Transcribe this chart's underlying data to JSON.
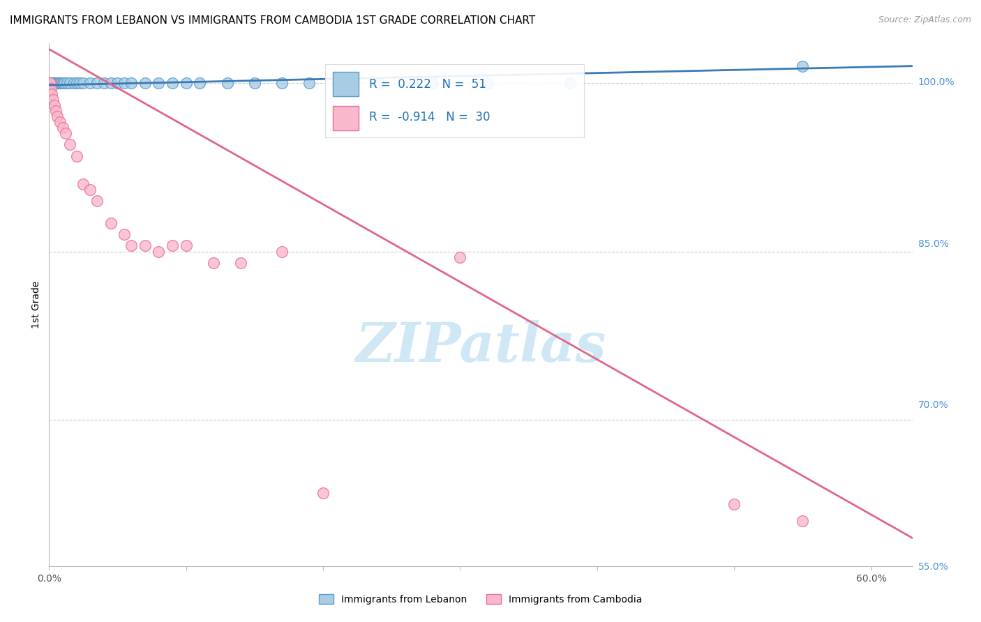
{
  "title": "IMMIGRANTS FROM LEBANON VS IMMIGRANTS FROM CAMBODIA 1ST GRADE CORRELATION CHART",
  "source": "Source: ZipAtlas.com",
  "ylabel": "1st Grade",
  "x_tick_positions": [
    0,
    10,
    20,
    30,
    40,
    50,
    60
  ],
  "x_tick_labels": [
    "0.0%",
    "",
    "",
    "",
    "",
    "",
    "60.0%"
  ],
  "right_ytick_vals": [
    100.0,
    85.0,
    70.0,
    55.0
  ],
  "right_ytick_labels": [
    "100.0%",
    "85.0%",
    "70.0%",
    "55.0%"
  ],
  "xlim": [
    0,
    63
  ],
  "ylim_data_min": 55.0,
  "ylim_data_max": 103.0,
  "lebanon_color": "#a8cce4",
  "cambodia_color": "#f9b8cb",
  "lebanon_edge": "#5b9dc9",
  "cambodia_edge": "#e87097",
  "trend_lebanon_color": "#3a7ab8",
  "trend_cambodia_color": "#e06688",
  "R_lebanon": 0.222,
  "N_lebanon": 51,
  "R_cambodia": -0.914,
  "N_cambodia": 30,
  "watermark": "ZIPatlas",
  "watermark_color": "#d0e8f5",
  "grid_color": "#cccccc",
  "lebanon_x": [
    0.05,
    0.08,
    0.1,
    0.12,
    0.15,
    0.18,
    0.2,
    0.22,
    0.25,
    0.28,
    0.3,
    0.35,
    0.4,
    0.45,
    0.5,
    0.55,
    0.6,
    0.65,
    0.7,
    0.8,
    0.9,
    1.0,
    1.1,
    1.3,
    1.5,
    1.8,
    2.0,
    2.2,
    2.5,
    3.0,
    3.5,
    4.0,
    4.5,
    5.0,
    5.5,
    6.0,
    7.0,
    8.0,
    9.0,
    10.0,
    11.0,
    13.0,
    15.0,
    17.0,
    19.0,
    21.0,
    24.0,
    28.0,
    32.0,
    38.0,
    55.0
  ],
  "lebanon_y": [
    100.0,
    100.0,
    100.0,
    100.0,
    100.0,
    100.0,
    100.0,
    100.0,
    100.0,
    100.0,
    100.0,
    100.0,
    100.0,
    100.0,
    100.0,
    100.0,
    100.0,
    100.0,
    100.0,
    100.0,
    100.0,
    100.0,
    100.0,
    100.0,
    100.0,
    100.0,
    100.0,
    100.0,
    100.0,
    100.0,
    100.0,
    100.0,
    100.0,
    100.0,
    100.0,
    100.0,
    100.0,
    100.0,
    100.0,
    100.0,
    100.0,
    100.0,
    100.0,
    100.0,
    100.0,
    100.0,
    100.0,
    100.0,
    100.0,
    100.0,
    101.5
  ],
  "cambodia_x": [
    0.05,
    0.1,
    0.15,
    0.2,
    0.3,
    0.4,
    0.5,
    0.6,
    0.8,
    1.0,
    1.2,
    1.5,
    2.0,
    2.5,
    3.0,
    3.5,
    4.5,
    5.5,
    6.0,
    7.0,
    8.0,
    9.0,
    10.0,
    12.0,
    14.0,
    17.0,
    20.0,
    30.0,
    50.0,
    55.0
  ],
  "cambodia_y": [
    100.0,
    100.0,
    99.5,
    99.0,
    98.5,
    98.0,
    97.5,
    97.0,
    96.5,
    96.0,
    95.5,
    94.5,
    93.5,
    91.0,
    90.5,
    89.5,
    87.5,
    86.5,
    85.5,
    85.5,
    85.0,
    85.5,
    85.5,
    84.0,
    84.0,
    85.0,
    63.5,
    84.5,
    62.5,
    61.0
  ],
  "leb_trend_x0": 0,
  "leb_trend_x1": 63,
  "leb_trend_y0": 99.8,
  "leb_trend_y1": 101.5,
  "cam_trend_x0": 0,
  "cam_trend_x1": 63,
  "cam_trend_y0": 103.0,
  "cam_trend_y1": 59.5
}
